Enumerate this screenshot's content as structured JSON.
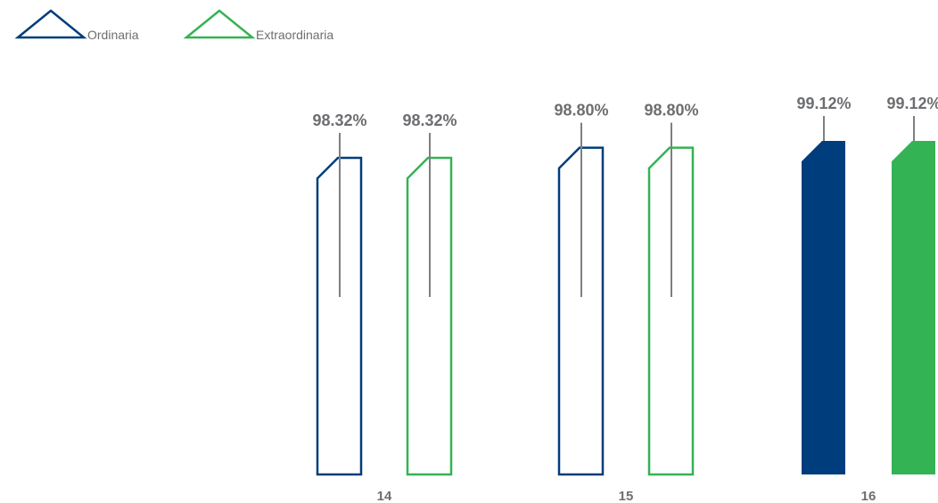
{
  "chart_data": {
    "type": "bar",
    "categories": [
      "14",
      "15",
      "16"
    ],
    "series": [
      {
        "name": "Ordinaria",
        "values": [
          98.32,
          98.8,
          99.12
        ],
        "color": "#003d7c"
      },
      {
        "name": "Extraordinaria",
        "values": [
          98.32,
          98.8,
          99.12
        ],
        "color": "#34b355"
      }
    ],
    "value_labels": [
      [
        "98.32%",
        "98.80%",
        "99.12%"
      ],
      [
        "98.32%",
        "98.80%",
        "99.12%"
      ]
    ],
    "filled_categories": [
      "16"
    ],
    "legend_placement": "top-left",
    "grid": false
  }
}
